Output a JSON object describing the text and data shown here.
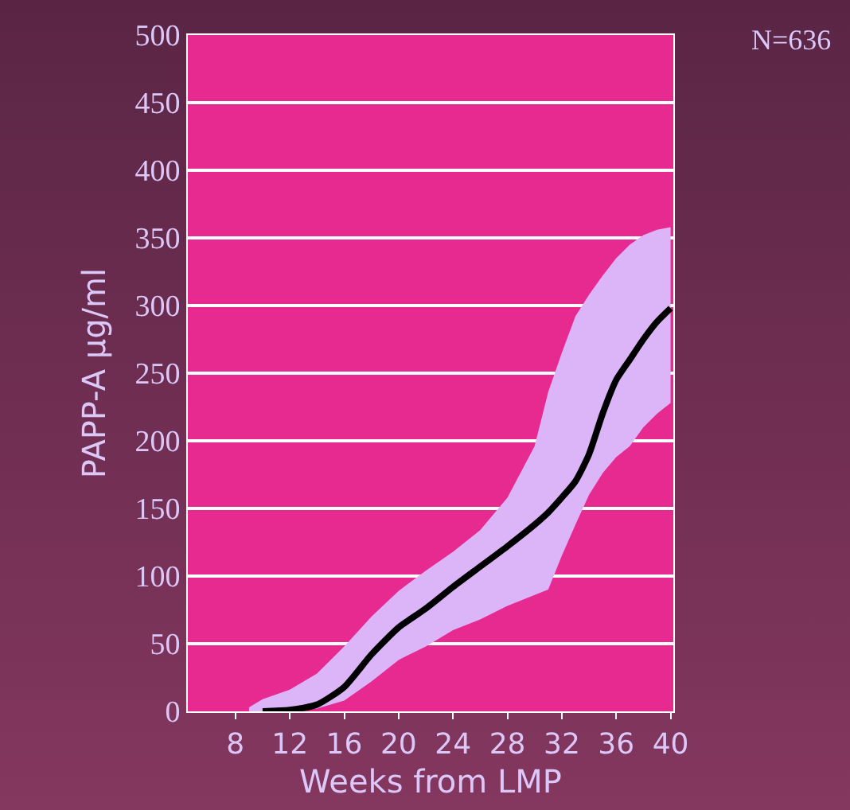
{
  "chart_data": {
    "type": "line",
    "xlabel": "Weeks from LMP",
    "ylabel": "PAPP-A μg/ml",
    "annotations": [
      "N=636"
    ],
    "x": [
      9,
      10,
      12,
      14,
      16,
      18,
      20,
      22,
      24,
      26,
      28,
      30,
      31,
      32,
      33,
      34,
      35,
      36,
      37,
      38,
      39,
      40
    ],
    "series": [
      {
        "color": "#000000",
        "values": [
          null,
          0,
          1,
          5,
          18,
          42,
          62,
          76,
          92,
          107,
          122,
          138,
          147,
          158,
          170,
          190,
          220,
          245,
          260,
          275,
          288,
          298
        ],
        "lower": [
          0,
          0,
          0,
          2,
          8,
          22,
          38,
          48,
          60,
          68,
          78,
          86,
          90,
          115,
          138,
          160,
          176,
          188,
          196,
          210,
          220,
          228
        ],
        "upper": [
          3,
          9,
          16,
          28,
          48,
          70,
          89,
          104,
          118,
          134,
          158,
          196,
          236,
          265,
          292,
          308,
          322,
          335,
          345,
          352,
          356,
          358
        ]
      }
    ],
    "xlim": [
      4.5,
      40.2
    ],
    "xticks": [
      8,
      12,
      16,
      20,
      24,
      28,
      32,
      36,
      40
    ],
    "ylim": [
      0,
      500
    ],
    "yticks": [
      0,
      50,
      100,
      150,
      200,
      250,
      300,
      350,
      400,
      450,
      500
    ],
    "grid": "y",
    "marker": "none",
    "line_style": "solid"
  }
}
